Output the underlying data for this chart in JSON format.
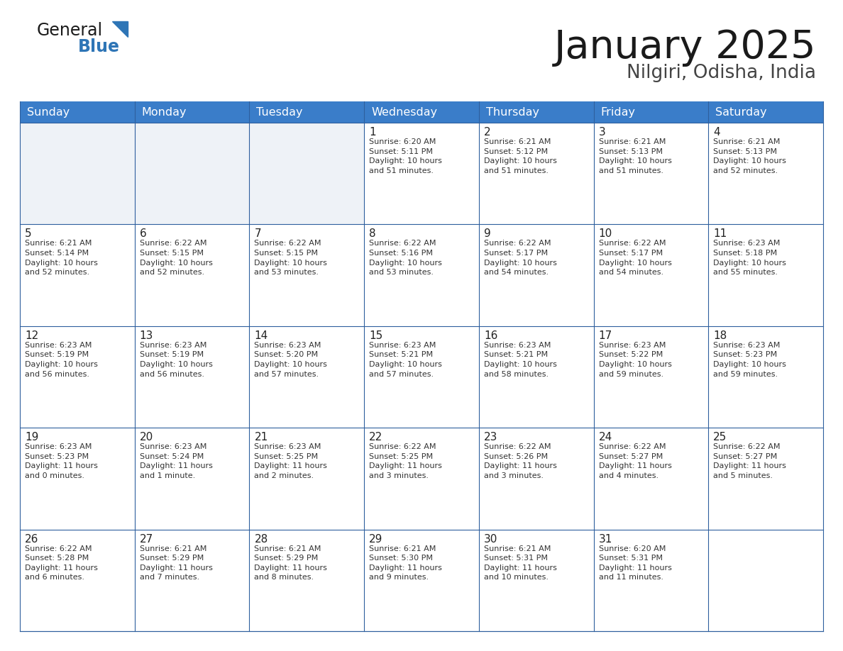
{
  "title": "January 2025",
  "subtitle": "Nilgiri, Odisha, India",
  "header_bg_color": "#3A7DC9",
  "header_text_color": "#FFFFFF",
  "cell_bg_color": "#FFFFFF",
  "row1_bg_color": "#EEF2F7",
  "border_color": "#2E5F9E",
  "title_color": "#1a1a1a",
  "subtitle_color": "#444444",
  "day_number_color": "#222222",
  "cell_text_color": "#333333",
  "day_headers": [
    "Sunday",
    "Monday",
    "Tuesday",
    "Wednesday",
    "Thursday",
    "Friday",
    "Saturday"
  ],
  "weeks": [
    [
      {
        "day": "",
        "text": ""
      },
      {
        "day": "",
        "text": ""
      },
      {
        "day": "",
        "text": ""
      },
      {
        "day": "1",
        "text": "Sunrise: 6:20 AM\nSunset: 5:11 PM\nDaylight: 10 hours\nand 51 minutes."
      },
      {
        "day": "2",
        "text": "Sunrise: 6:21 AM\nSunset: 5:12 PM\nDaylight: 10 hours\nand 51 minutes."
      },
      {
        "day": "3",
        "text": "Sunrise: 6:21 AM\nSunset: 5:13 PM\nDaylight: 10 hours\nand 51 minutes."
      },
      {
        "day": "4",
        "text": "Sunrise: 6:21 AM\nSunset: 5:13 PM\nDaylight: 10 hours\nand 52 minutes."
      }
    ],
    [
      {
        "day": "5",
        "text": "Sunrise: 6:21 AM\nSunset: 5:14 PM\nDaylight: 10 hours\nand 52 minutes."
      },
      {
        "day": "6",
        "text": "Sunrise: 6:22 AM\nSunset: 5:15 PM\nDaylight: 10 hours\nand 52 minutes."
      },
      {
        "day": "7",
        "text": "Sunrise: 6:22 AM\nSunset: 5:15 PM\nDaylight: 10 hours\nand 53 minutes."
      },
      {
        "day": "8",
        "text": "Sunrise: 6:22 AM\nSunset: 5:16 PM\nDaylight: 10 hours\nand 53 minutes."
      },
      {
        "day": "9",
        "text": "Sunrise: 6:22 AM\nSunset: 5:17 PM\nDaylight: 10 hours\nand 54 minutes."
      },
      {
        "day": "10",
        "text": "Sunrise: 6:22 AM\nSunset: 5:17 PM\nDaylight: 10 hours\nand 54 minutes."
      },
      {
        "day": "11",
        "text": "Sunrise: 6:23 AM\nSunset: 5:18 PM\nDaylight: 10 hours\nand 55 minutes."
      }
    ],
    [
      {
        "day": "12",
        "text": "Sunrise: 6:23 AM\nSunset: 5:19 PM\nDaylight: 10 hours\nand 56 minutes."
      },
      {
        "day": "13",
        "text": "Sunrise: 6:23 AM\nSunset: 5:19 PM\nDaylight: 10 hours\nand 56 minutes."
      },
      {
        "day": "14",
        "text": "Sunrise: 6:23 AM\nSunset: 5:20 PM\nDaylight: 10 hours\nand 57 minutes."
      },
      {
        "day": "15",
        "text": "Sunrise: 6:23 AM\nSunset: 5:21 PM\nDaylight: 10 hours\nand 57 minutes."
      },
      {
        "day": "16",
        "text": "Sunrise: 6:23 AM\nSunset: 5:21 PM\nDaylight: 10 hours\nand 58 minutes."
      },
      {
        "day": "17",
        "text": "Sunrise: 6:23 AM\nSunset: 5:22 PM\nDaylight: 10 hours\nand 59 minutes."
      },
      {
        "day": "18",
        "text": "Sunrise: 6:23 AM\nSunset: 5:23 PM\nDaylight: 10 hours\nand 59 minutes."
      }
    ],
    [
      {
        "day": "19",
        "text": "Sunrise: 6:23 AM\nSunset: 5:23 PM\nDaylight: 11 hours\nand 0 minutes."
      },
      {
        "day": "20",
        "text": "Sunrise: 6:23 AM\nSunset: 5:24 PM\nDaylight: 11 hours\nand 1 minute."
      },
      {
        "day": "21",
        "text": "Sunrise: 6:23 AM\nSunset: 5:25 PM\nDaylight: 11 hours\nand 2 minutes."
      },
      {
        "day": "22",
        "text": "Sunrise: 6:22 AM\nSunset: 5:25 PM\nDaylight: 11 hours\nand 3 minutes."
      },
      {
        "day": "23",
        "text": "Sunrise: 6:22 AM\nSunset: 5:26 PM\nDaylight: 11 hours\nand 3 minutes."
      },
      {
        "day": "24",
        "text": "Sunrise: 6:22 AM\nSunset: 5:27 PM\nDaylight: 11 hours\nand 4 minutes."
      },
      {
        "day": "25",
        "text": "Sunrise: 6:22 AM\nSunset: 5:27 PM\nDaylight: 11 hours\nand 5 minutes."
      }
    ],
    [
      {
        "day": "26",
        "text": "Sunrise: 6:22 AM\nSunset: 5:28 PM\nDaylight: 11 hours\nand 6 minutes."
      },
      {
        "day": "27",
        "text": "Sunrise: 6:21 AM\nSunset: 5:29 PM\nDaylight: 11 hours\nand 7 minutes."
      },
      {
        "day": "28",
        "text": "Sunrise: 6:21 AM\nSunset: 5:29 PM\nDaylight: 11 hours\nand 8 minutes."
      },
      {
        "day": "29",
        "text": "Sunrise: 6:21 AM\nSunset: 5:30 PM\nDaylight: 11 hours\nand 9 minutes."
      },
      {
        "day": "30",
        "text": "Sunrise: 6:21 AM\nSunset: 5:31 PM\nDaylight: 11 hours\nand 10 minutes."
      },
      {
        "day": "31",
        "text": "Sunrise: 6:20 AM\nSunset: 5:31 PM\nDaylight: 11 hours\nand 11 minutes."
      },
      {
        "day": "",
        "text": ""
      }
    ]
  ],
  "logo_text_general": "General",
  "logo_text_blue": "Blue",
  "logo_color_general": "#1a1a1a",
  "logo_color_blue": "#2E75B6",
  "logo_triangle_color": "#2E75B6"
}
